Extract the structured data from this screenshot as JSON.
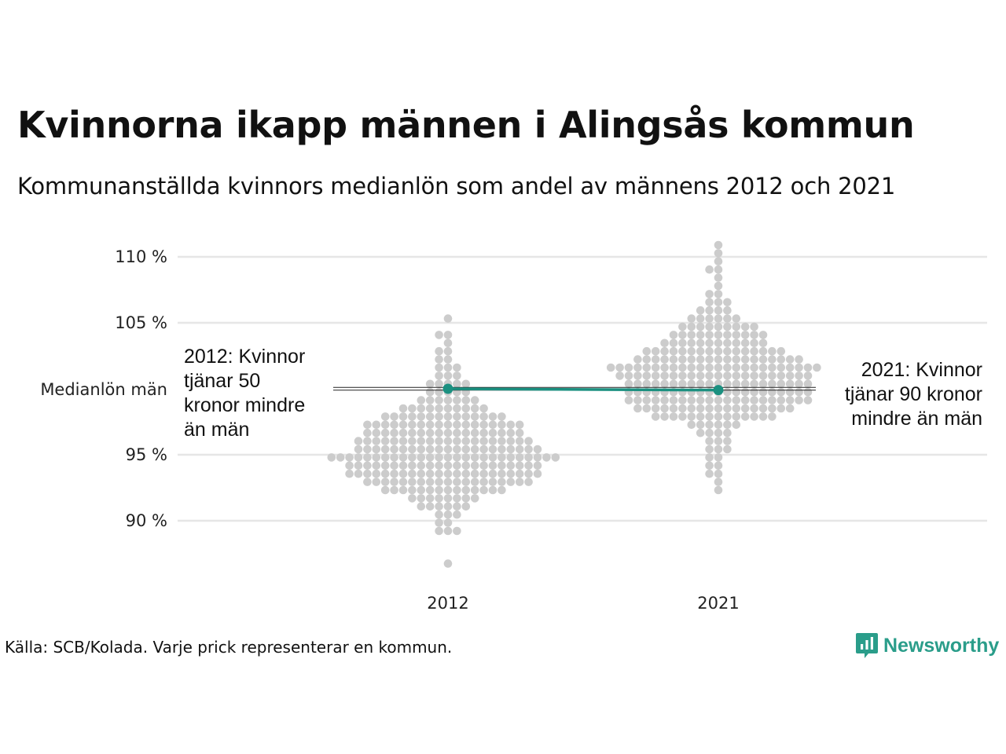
{
  "title": "Kvinnorna ikapp männen i Alingsås kommun",
  "subtitle": "Kommunanställda kvinnors medianlön som andel av männens 2012 och 2021",
  "source": "Källa: SCB/Kolada. Varje prick representerar en kommun.",
  "brand": {
    "name": "Newsworthy",
    "icon": "chart-bubble-icon",
    "color": "#2a9d8a"
  },
  "colors": {
    "dots": "#cccccc",
    "highlight": "#1b9080",
    "grid": "#e6e6e6",
    "reference": "#222222"
  },
  "chart_data": {
    "type": "scatter",
    "subtype": "beeswarm",
    "categories": [
      "2012",
      "2021"
    ],
    "ylim": [
      86.5,
      111.5
    ],
    "y_ticks": [
      {
        "value": 90,
        "label": "90 %"
      },
      {
        "value": 95,
        "label": "95 %"
      },
      {
        "value": 105,
        "label": "105 %"
      },
      {
        "value": 110,
        "label": "110 %"
      }
    ],
    "reference_line": {
      "value": 100,
      "label": "Medianlön män"
    },
    "highlight": {
      "name": "Alingsås",
      "points": [
        {
          "x": "2012",
          "y": 100.0
        },
        {
          "x": "2021",
          "y": 99.9
        }
      ]
    },
    "annotations": [
      {
        "x": "2012",
        "lines": [
          "2012: Kvinnor",
          "tjänar 50",
          "kronor mindre",
          "än män"
        ]
      },
      {
        "x": "2021",
        "lines": [
          "2021: Kvinnor",
          "tjänar 90 kronor",
          "mindre än män"
        ]
      }
    ],
    "series": [
      {
        "category": "2012",
        "values": [
          86.7,
          89.1,
          89.2,
          89.5,
          89.8,
          90.1,
          90.4,
          90.6,
          90.7,
          90.8,
          90.9,
          91.0,
          91.1,
          91.2,
          91.3,
          91.4,
          91.5,
          91.6,
          91.7,
          91.8,
          91.9,
          92.0,
          92.0,
          92.1,
          92.1,
          92.2,
          92.2,
          92.3,
          92.3,
          92.4,
          92.4,
          92.5,
          92.5,
          92.5,
          92.6,
          92.6,
          92.6,
          92.7,
          92.7,
          92.7,
          92.8,
          92.8,
          92.8,
          92.9,
          92.9,
          92.9,
          93.0,
          93.0,
          93.0,
          93.0,
          93.1,
          93.1,
          93.1,
          93.2,
          93.2,
          93.2,
          93.3,
          93.3,
          93.3,
          93.3,
          93.4,
          93.4,
          93.4,
          93.5,
          93.5,
          93.5,
          93.5,
          93.6,
          93.6,
          93.6,
          93.7,
          93.7,
          93.7,
          93.7,
          93.8,
          93.8,
          93.8,
          93.8,
          93.9,
          93.9,
          93.9,
          94.0,
          94.0,
          94.0,
          94.0,
          94.1,
          94.1,
          94.1,
          94.1,
          94.2,
          94.2,
          94.2,
          94.2,
          94.3,
          94.3,
          94.3,
          94.4,
          94.4,
          94.4,
          94.4,
          94.5,
          94.5,
          94.5,
          94.5,
          94.6,
          94.6,
          94.6,
          94.7,
          94.7,
          94.7,
          94.7,
          94.8,
          94.8,
          94.8,
          94.8,
          94.9,
          94.9,
          94.9,
          95.0,
          95.0,
          95.0,
          95.0,
          95.1,
          95.1,
          95.1,
          95.1,
          95.2,
          95.2,
          95.2,
          95.3,
          95.3,
          95.3,
          95.3,
          95.4,
          95.4,
          95.4,
          95.4,
          95.5,
          95.5,
          95.5,
          95.6,
          95.6,
          95.6,
          95.6,
          95.7,
          95.7,
          95.7,
          95.8,
          95.8,
          95.8,
          95.8,
          95.9,
          95.9,
          95.9,
          96.0,
          96.0,
          96.0,
          96.0,
          96.1,
          96.1,
          96.1,
          96.2,
          96.2,
          96.2,
          96.3,
          96.3,
          96.3,
          96.4,
          96.4,
          96.4,
          96.5,
          96.5,
          96.5,
          96.6,
          96.6,
          96.6,
          96.7,
          96.7,
          96.7,
          96.8,
          96.8,
          96.8,
          96.9,
          96.9,
          96.9,
          97.0,
          97.0,
          97.0,
          97.1,
          97.1,
          97.1,
          97.2,
          97.2,
          97.2,
          97.3,
          97.3,
          97.3,
          97.4,
          97.4,
          97.4,
          97.5,
          97.5,
          97.5,
          97.6,
          97.6,
          97.7,
          97.7,
          97.8,
          97.8,
          97.9,
          97.9,
          98.0,
          98.0,
          98.1,
          98.1,
          98.2,
          98.2,
          98.3,
          98.3,
          98.4,
          98.4,
          98.5,
          98.5,
          98.6,
          98.7,
          98.7,
          98.8,
          98.9,
          98.9,
          99.0,
          99.1,
          99.2,
          99.3,
          99.4,
          99.5,
          99.6,
          99.7,
          99.8,
          99.9,
          100.1,
          100.2,
          100.3,
          100.5,
          100.6,
          100.8,
          101.0,
          101.2,
          101.4,
          101.6,
          101.8,
          102.1,
          102.4,
          102.7,
          103.0,
          103.4,
          103.8,
          104.3,
          105.1
        ]
      },
      {
        "category": "2021",
        "values": [
          92.6,
          93.0,
          93.4,
          93.7,
          94.0,
          94.3,
          94.6,
          94.9,
          95.2,
          95.5,
          95.7,
          95.9,
          96.1,
          96.3,
          96.5,
          96.7,
          96.8,
          96.9,
          97.0,
          97.1,
          97.2,
          97.3,
          97.4,
          97.5,
          97.6,
          97.6,
          97.7,
          97.7,
          97.8,
          97.8,
          97.9,
          97.9,
          98.0,
          98.0,
          98.1,
          98.1,
          98.2,
          98.2,
          98.3,
          98.3,
          98.3,
          98.4,
          98.4,
          98.4,
          98.5,
          98.5,
          98.5,
          98.6,
          98.6,
          98.6,
          98.7,
          98.7,
          98.7,
          98.8,
          98.8,
          98.8,
          98.9,
          98.9,
          98.9,
          99.0,
          99.0,
          99.0,
          99.0,
          99.1,
          99.1,
          99.1,
          99.2,
          99.2,
          99.2,
          99.2,
          99.3,
          99.3,
          99.3,
          99.4,
          99.4,
          99.4,
          99.4,
          99.5,
          99.5,
          99.5,
          99.6,
          99.6,
          99.6,
          99.6,
          99.7,
          99.7,
          99.7,
          99.8,
          99.8,
          99.8,
          99.8,
          99.9,
          99.9,
          99.9,
          100.0,
          100.0,
          100.0,
          100.0,
          100.1,
          100.1,
          100.1,
          100.1,
          100.2,
          100.2,
          100.2,
          100.3,
          100.3,
          100.3,
          100.3,
          100.4,
          100.4,
          100.4,
          100.5,
          100.5,
          100.5,
          100.5,
          100.6,
          100.6,
          100.6,
          100.7,
          100.7,
          100.7,
          100.7,
          100.8,
          100.8,
          100.8,
          100.8,
          100.9,
          100.9,
          100.9,
          101.0,
          101.0,
          101.0,
          101.0,
          101.1,
          101.1,
          101.1,
          101.2,
          101.2,
          101.2,
          101.2,
          101.3,
          101.3,
          101.3,
          101.4,
          101.4,
          101.4,
          101.4,
          101.5,
          101.5,
          101.5,
          101.6,
          101.6,
          101.6,
          101.6,
          101.7,
          101.7,
          101.7,
          101.8,
          101.8,
          101.8,
          101.8,
          101.9,
          101.9,
          101.9,
          102.0,
          102.0,
          102.0,
          102.0,
          102.1,
          102.1,
          102.1,
          102.2,
          102.2,
          102.2,
          102.3,
          102.3,
          102.3,
          102.4,
          102.4,
          102.4,
          102.5,
          102.5,
          102.5,
          102.6,
          102.6,
          102.6,
          102.7,
          102.7,
          102.7,
          102.8,
          102.8,
          102.8,
          102.9,
          102.9,
          102.9,
          103.0,
          103.0,
          103.1,
          103.1,
          103.2,
          103.2,
          103.3,
          103.3,
          103.4,
          103.4,
          103.5,
          103.5,
          103.6,
          103.6,
          103.7,
          103.7,
          103.8,
          103.8,
          103.9,
          103.9,
          104.0,
          104.0,
          104.1,
          104.2,
          104.2,
          104.3,
          104.3,
          104.4,
          104.5,
          104.5,
          104.6,
          104.7,
          104.7,
          104.8,
          104.9,
          105.0,
          105.1,
          105.2,
          105.3,
          105.4,
          105.5,
          105.6,
          105.7,
          105.9,
          106.0,
          106.2,
          106.4,
          106.6,
          106.8,
          107.1,
          107.4,
          107.8,
          108.3,
          108.8,
          109.3,
          109.8,
          110.4,
          111.2
        ]
      }
    ]
  }
}
